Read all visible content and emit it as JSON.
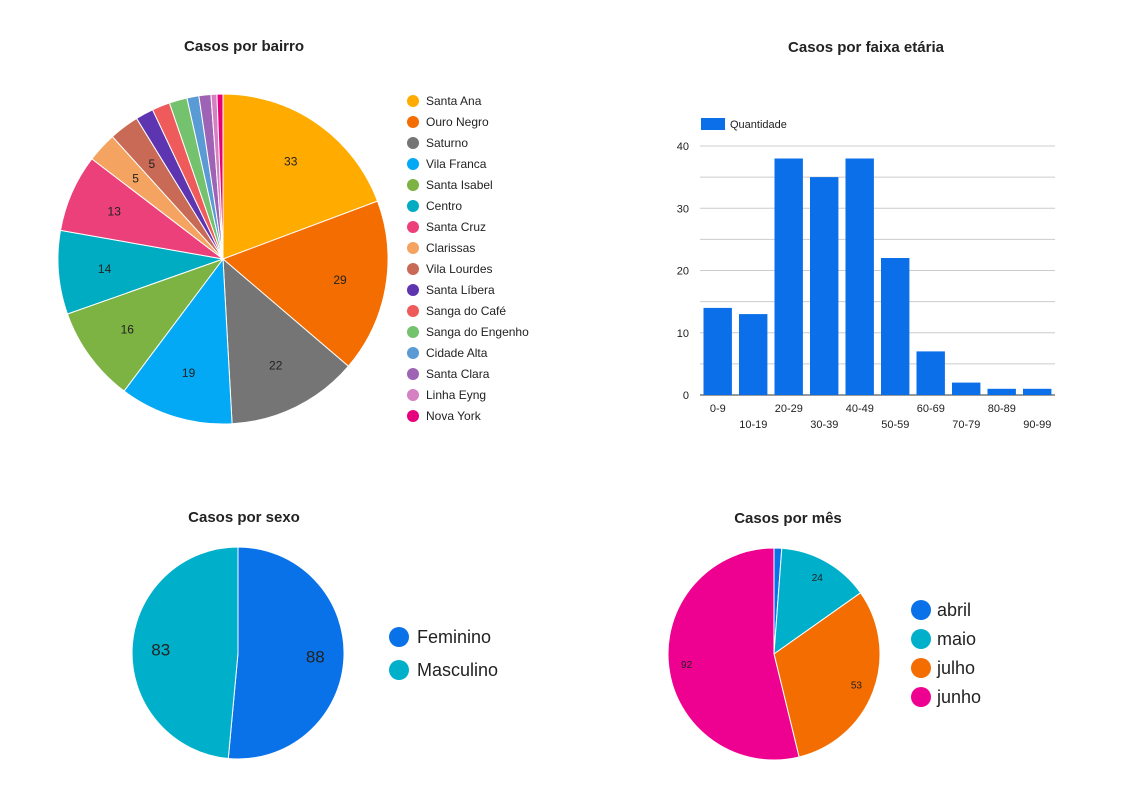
{
  "chart_data": [
    {
      "type": "pie",
      "title": "Casos por bairro",
      "categories": [
        "Santa Ana",
        "Ouro Negro",
        "Saturno",
        "Vila Franca",
        "Santa Isabel",
        "Centro",
        "Santa Cruz",
        "Clarissas",
        "Vila Lourdes",
        "Santa Líbera",
        "Sanga do Café",
        "Sanga do Engenho",
        "Cidade Alta",
        "Santa Clara",
        "Linha Eyng",
        "Nova York"
      ],
      "values": [
        33,
        29,
        22,
        19,
        16,
        14,
        13,
        5,
        5,
        3,
        3,
        3,
        2,
        2,
        1,
        1
      ],
      "labels": [
        "33",
        "29",
        "22",
        "19",
        "16",
        "14",
        "13",
        "5",
        "5",
        "",
        "",
        "",
        "",
        "",
        "",
        ""
      ],
      "colors": [
        "#FFAB00",
        "#F46D00",
        "#757575",
        "#03A9F4",
        "#7CB342",
        "#00ACC1",
        "#EC407A",
        "#F4A460",
        "#C96A56",
        "#5E35B1",
        "#EF5B5B",
        "#74C26D",
        "#5B9BD5",
        "#9E63B5",
        "#D580C0",
        "#E6007E"
      ],
      "legend_position": "right"
    },
    {
      "type": "bar",
      "title": "Casos por faixa etária",
      "categories": [
        "0-9",
        "10-19",
        "20-29",
        "30-39",
        "40-49",
        "50-59",
        "60-69",
        "70-79",
        "80-89",
        "90-99"
      ],
      "series": [
        {
          "name": "Quantidade",
          "values": [
            14,
            13,
            38,
            35,
            38,
            22,
            7,
            2,
            1,
            1
          ]
        }
      ],
      "ylim": [
        0,
        40
      ],
      "yticks": [
        0,
        10,
        20,
        30,
        40
      ],
      "grid": true,
      "legend_position": "top-left",
      "color": "#0A6FE8"
    },
    {
      "type": "pie",
      "title": "Casos por sexo",
      "categories": [
        "Feminino",
        "Masculino"
      ],
      "values": [
        88,
        83
      ],
      "labels": [
        "88",
        "83"
      ],
      "colors": [
        "#0A72E8",
        "#00B0CA"
      ],
      "legend_position": "right"
    },
    {
      "type": "pie",
      "title": "Casos por mês",
      "categories": [
        "abril",
        "maio",
        "julho",
        "junho"
      ],
      "values": [
        2,
        24,
        53,
        92
      ],
      "labels": [
        "",
        "24",
        "53",
        "92"
      ],
      "colors": [
        "#0A72E8",
        "#00B0CA",
        "#F46D00",
        "#EE0090"
      ],
      "legend_position": "right"
    }
  ]
}
